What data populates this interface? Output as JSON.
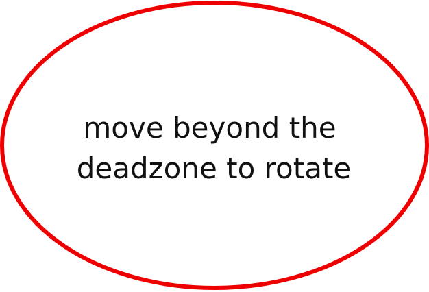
{
  "diagram": {
    "deadzone": {
      "stroke_color": "#ee0000",
      "fill_color": "#ffffff"
    },
    "hint": {
      "line1": "move beyond the",
      "line2": "deadzone to rotate"
    }
  }
}
